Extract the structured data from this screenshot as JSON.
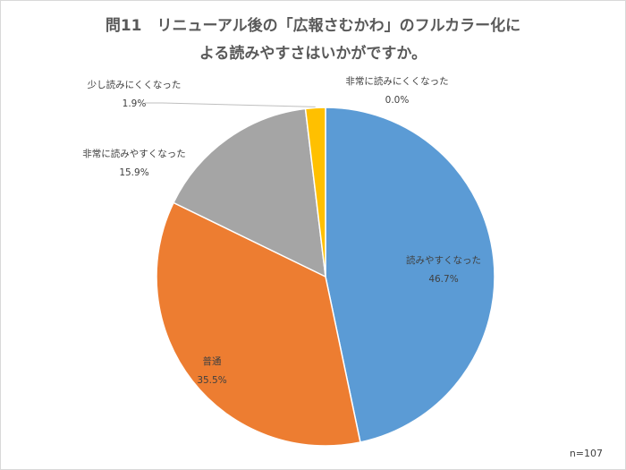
{
  "title_line1": "問11　リニューアル後の「広報さむかわ」のフルカラー化に",
  "title_line2": "よる読みやすさはいかがですか。",
  "note": "n=107",
  "chart_data": {
    "type": "pie",
    "slices": [
      {
        "label": "読みやすくなった",
        "value": 46.7,
        "value_label": "46.7%",
        "color": "#5b9bd5"
      },
      {
        "label": "普通",
        "value": 35.5,
        "value_label": "35.5%",
        "color": "#ed7d31"
      },
      {
        "label": "非常に読みやすくなった",
        "value": 15.9,
        "value_label": "15.9%",
        "color": "#a5a5a5"
      },
      {
        "label": "少し読みにくくなった",
        "value": 1.9,
        "value_label": "1.9%",
        "color": "#ffc000"
      },
      {
        "label": "非常に読みにくくなった",
        "value": 0.0,
        "value_label": "0.0%",
        "color": "#4472c4"
      }
    ]
  }
}
